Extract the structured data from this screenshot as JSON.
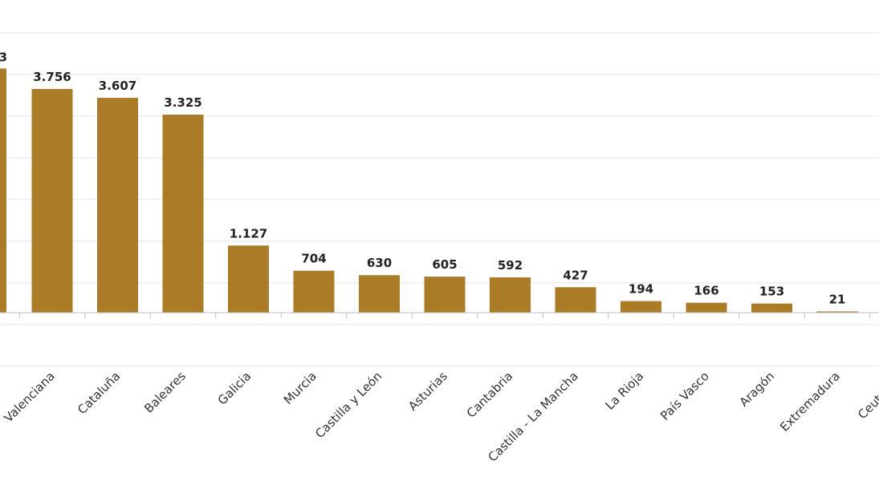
{
  "chart_data": {
    "type": "bar",
    "categories": [
      "C. Valenciana",
      "Cataluña",
      "Baleares",
      "Galicia",
      "Murcia",
      "Castilla y León",
      "Asturias",
      "Cantabria",
      "Castilla - La Mancha",
      "La Rioja",
      "País Vasco",
      "Aragón",
      "Extremadura",
      "Ceuta y M"
    ],
    "category_labels": [
      "Valenciana",
      "Cataluña",
      "Baleares",
      "Galicia",
      "Murcia",
      "Castilla y León",
      "Asturias",
      "Cantabria",
      "Castilla - La Mancha",
      "La Rioja",
      "País Vasco",
      "Aragón",
      "Extremadura",
      "Ceuta y M"
    ],
    "values": [
      3756,
      3607,
      3325,
      1127,
      704,
      630,
      605,
      592,
      427,
      194,
      166,
      153,
      21,
      0
    ],
    "value_labels": [
      "3.756",
      "3.607",
      "3.325",
      "1.127",
      "704",
      "630",
      "605",
      "592",
      "427",
      "194",
      "166",
      "153",
      "21",
      ""
    ],
    "partial_bar": {
      "value": 4100,
      "label": "3"
    },
    "title": "",
    "xlabel": "",
    "ylabel": "",
    "ylim": [
      -900,
      6300
    ],
    "grid": true,
    "bar_color": "#ab7c28"
  }
}
